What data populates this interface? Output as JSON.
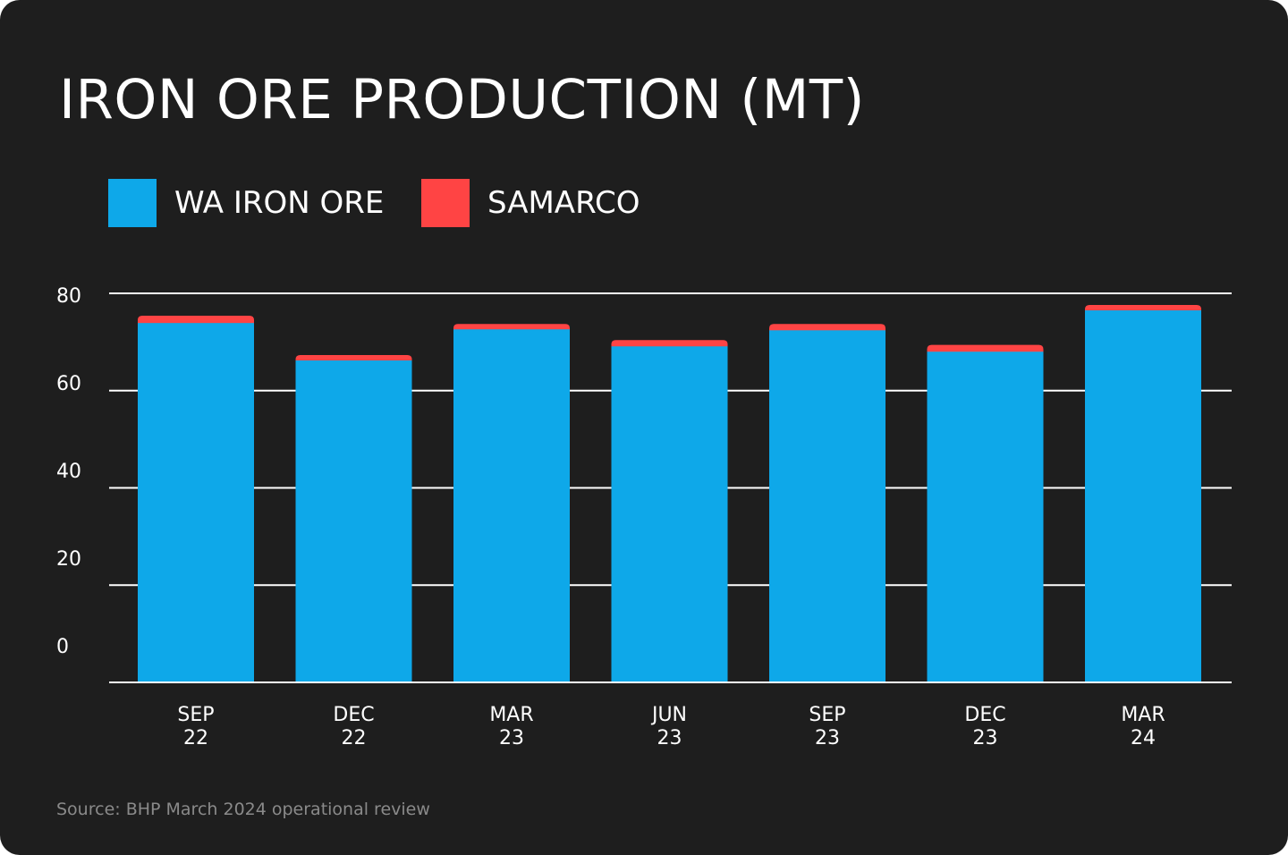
{
  "chart_data": {
    "type": "bar",
    "stacked": true,
    "title": "IRON ORE PRODUCTION (MT)",
    "categories": [
      [
        "SEP",
        "22"
      ],
      [
        "DEC",
        "22"
      ],
      [
        "MAR",
        "23"
      ],
      [
        "JUN",
        "23"
      ],
      [
        "SEP",
        "23"
      ],
      [
        "DEC",
        "23"
      ],
      [
        "MAR",
        "24"
      ]
    ],
    "series": [
      {
        "name": "WA IRON ORE",
        "color": "#0ea8e9",
        "values": [
          73.9,
          66.2,
          72.6,
          69.1,
          72.4,
          68.0,
          76.5
        ]
      },
      {
        "name": "SAMARCO",
        "color": "#ff4444",
        "values": [
          1.5,
          1.1,
          1.1,
          1.3,
          1.3,
          1.4,
          1.1
        ]
      }
    ],
    "yticks": [
      "80",
      "60",
      "40",
      "20",
      "0"
    ],
    "ylim": [
      0,
      80
    ],
    "grid": true,
    "legend": "top-left",
    "xlabel": "",
    "ylabel": "",
    "source": "Source: BHP March 2024 operational review"
  }
}
